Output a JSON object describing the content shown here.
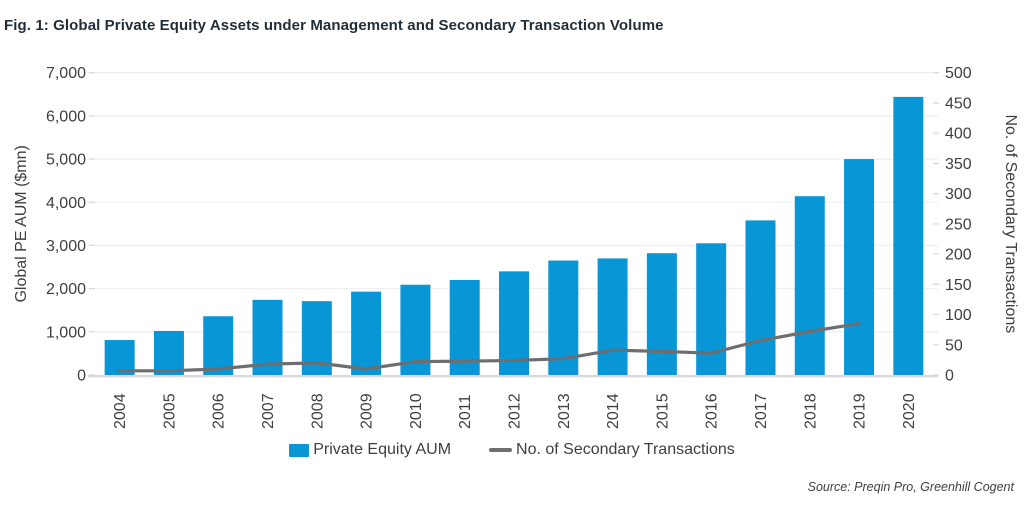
{
  "title": "Fig. 1: Global Private Equity Assets under Management and Secondary Transaction Volume",
  "source": "Source: Preqin Pro, Greenhill Cogent",
  "colors": {
    "bar": "#0996d7",
    "line": "#6d6e70",
    "title_text": "#222f3a",
    "axis_text": "#3f3f3f",
    "gridline": "#efefef",
    "axis_line": "#d9d9d9"
  },
  "legend": [
    {
      "label": "Private Equity AUM",
      "type": "bar"
    },
    {
      "label": "No. of Secondary Transactions",
      "type": "line"
    }
  ],
  "chart_data": {
    "type": "bar",
    "subtype": "bar-line-combo",
    "title": "Fig. 1: Global Private Equity Assets under Management and Secondary Transaction Volume",
    "categories": [
      "2004",
      "2005",
      "2006",
      "2007",
      "2008",
      "2009",
      "2010",
      "2011",
      "2012",
      "2013",
      "2014",
      "2015",
      "2016",
      "2017",
      "2018",
      "2019",
      "2020"
    ],
    "series": [
      {
        "name": "Private Equity AUM",
        "type": "bar",
        "axis": "left",
        "values": [
          810,
          1020,
          1360,
          1740,
          1710,
          1930,
          2090,
          2200,
          2400,
          2650,
          2700,
          2820,
          3050,
          3580,
          4140,
          5000,
          6440
        ]
      },
      {
        "name": "No. of Secondary Transactions",
        "type": "line",
        "axis": "right",
        "values": [
          7,
          7,
          10,
          18,
          20,
          10,
          22,
          23,
          24,
          27,
          41,
          39,
          36,
          57,
          72,
          85,
          null
        ]
      }
    ],
    "y_left": {
      "label": "Global PE AUM ($mn)",
      "min": 0,
      "max": 7000,
      "step": 1000
    },
    "y_right": {
      "label": "No. of Secondary Transactions",
      "min": 0,
      "max": 500,
      "step": 50
    },
    "grid": "horizontal-on",
    "legend_position": "bottom",
    "xlabel": "",
    "ylabel": "Global PE AUM ($mn)"
  }
}
